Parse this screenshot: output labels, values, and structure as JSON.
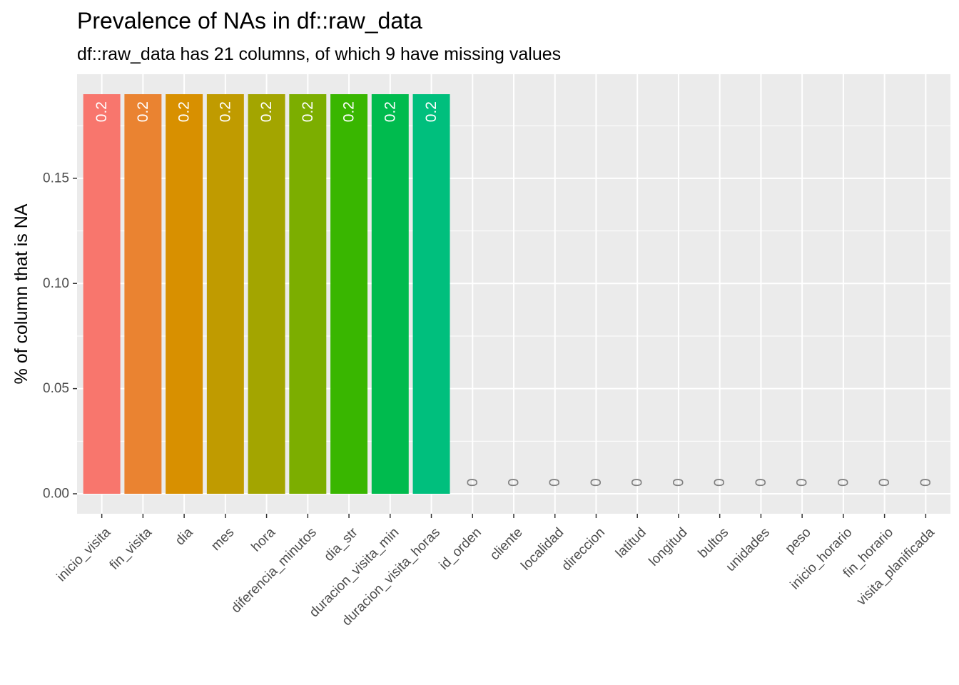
{
  "chart_data": {
    "type": "bar",
    "title": "Prevalence of NAs in df::raw_data",
    "subtitle": "df::raw_data has 21 columns, of which 9 have missing values",
    "xlabel": "",
    "ylabel": "% of column that is NA",
    "ylim": [
      -0.0095,
      0.1995
    ],
    "yticks": [
      0.0,
      0.05,
      0.1,
      0.15
    ],
    "ytick_labels": [
      "0.00",
      "0.05",
      "0.10",
      "0.15"
    ],
    "grid": true,
    "legend": "none",
    "categories": [
      "inicio_visita",
      "fin_visita",
      "dia",
      "mes",
      "hora",
      "diferencia_minutos",
      "dia_str",
      "duracion_visita_min",
      "duracion_visita_horas",
      "id_orden",
      "cliente",
      "localidad",
      "direccion",
      "latitud",
      "longitud",
      "bultos",
      "unidades",
      "peso",
      "inicio_horario",
      "fin_horario",
      "visita_planificada"
    ],
    "values": [
      0.19,
      0.19,
      0.19,
      0.19,
      0.19,
      0.19,
      0.19,
      0.19,
      0.19,
      0,
      0,
      0,
      0,
      0,
      0,
      0,
      0,
      0,
      0,
      0,
      0
    ],
    "data_labels": [
      "0.2",
      "0.2",
      "0.2",
      "0.2",
      "0.2",
      "0.2",
      "0.2",
      "0.2",
      "0.2",
      "0",
      "0",
      "0",
      "0",
      "0",
      "0",
      "0",
      "0",
      "0",
      "0",
      "0",
      "0"
    ],
    "colors": [
      "#F8766D",
      "#EA8331",
      "#D89000",
      "#C09B00",
      "#A3A500",
      "#7CAE00",
      "#39B600",
      "#00BB4E",
      "#00BF7D",
      "#00C1A3",
      "#00BFC4",
      "#00BAE0",
      "#00B0F6",
      "#35A2FF",
      "#9590FF",
      "#C77CFF",
      "#E76BF3",
      "#FA62DB",
      "#FF62BC",
      "#FF6C91",
      "#FF6C91"
    ],
    "colors_note_fill": "#EBEBEB",
    "label_color_nonzero": "#FFFFFF",
    "label_color_zero": "#808080"
  }
}
